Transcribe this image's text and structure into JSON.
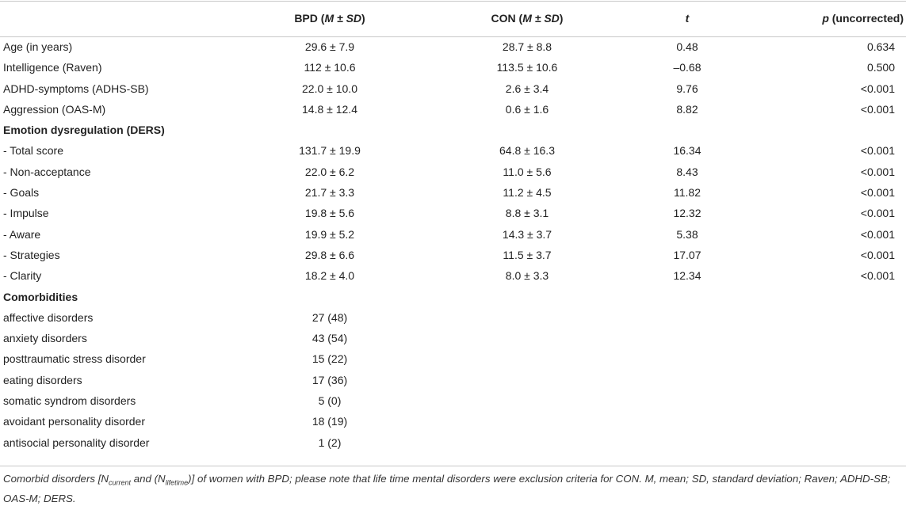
{
  "header": {
    "col0": "",
    "col1_pre": "BPD (",
    "col1_it": "M ± SD",
    "col1_post": ")",
    "col2_pre": "CON (",
    "col2_it": "M ± SD",
    "col2_post": ")",
    "col3": "t",
    "col4_it": "p",
    "col4_post": " (uncorrected)"
  },
  "rows": [
    {
      "label": "Age (in years)",
      "bpd": "29.6 ± 7.9",
      "con": "28.7 ± 8.8",
      "t": "0.48",
      "p": "0.634"
    },
    {
      "label": "Intelligence (Raven)",
      "bpd": "112 ± 10.6",
      "con": "113.5 ± 10.6",
      "t": "–0.68",
      "p": "0.500"
    },
    {
      "label": "ADHD-symptoms (ADHS-SB)",
      "bpd": "22.0 ± 10.0",
      "con": "2.6 ± 3.4",
      "t": "9.76",
      "p": "<0.001"
    },
    {
      "label": "Aggression (OAS-M)",
      "bpd": "14.8 ± 12.4",
      "con": "0.6 ± 1.6",
      "t": "8.82",
      "p": "<0.001"
    },
    {
      "section": true,
      "label": "Emotion dysregulation (DERS)"
    },
    {
      "label": "-  Total score",
      "bpd": "131.7 ± 19.9",
      "con": "64.8 ± 16.3",
      "t": "16.34",
      "p": "<0.001"
    },
    {
      "label": "-  Non-acceptance",
      "bpd": "22.0 ± 6.2",
      "con": "11.0 ± 5.6",
      "t": "8.43",
      "p": "<0.001"
    },
    {
      "label": "-  Goals",
      "bpd": "21.7 ± 3.3",
      "con": "11.2 ± 4.5",
      "t": "11.82",
      "p": "<0.001"
    },
    {
      "label": "-  Impulse",
      "bpd": "19.8 ± 5.6",
      "con": "8.8 ± 3.1",
      "t": "12.32",
      "p": "<0.001"
    },
    {
      "label": "-  Aware",
      "bpd": "19.9 ± 5.2",
      "con": "14.3 ± 3.7",
      "t": "5.38",
      "p": "<0.001"
    },
    {
      "label": "-  Strategies",
      "bpd": "29.8 ± 6.6",
      "con": "11.5 ± 3.7",
      "t": "17.07",
      "p": "<0.001"
    },
    {
      "label": "-  Clarity",
      "bpd": "18.2 ± 4.0",
      "con": "8.0 ± 3.3",
      "t": "12.34",
      "p": "<0.001"
    },
    {
      "section": true,
      "label": "Comorbidities"
    },
    {
      "label": "affective disorders",
      "bpd": "27 (48)",
      "con": "",
      "t": "",
      "p": ""
    },
    {
      "label": "anxiety disorders",
      "bpd": "43 (54)",
      "con": "",
      "t": "",
      "p": ""
    },
    {
      "label": "posttraumatic stress disorder",
      "bpd": "15 (22)",
      "con": "",
      "t": "",
      "p": ""
    },
    {
      "label": "eating disorders",
      "bpd": "17 (36)",
      "con": "",
      "t": "",
      "p": ""
    },
    {
      "label": "somatic syndrom disorders",
      "bpd": "5 (0)",
      "con": "",
      "t": "",
      "p": ""
    },
    {
      "label": "avoidant personality disorder",
      "bpd": "18 (19)",
      "con": "",
      "t": "",
      "p": ""
    },
    {
      "label": "antisocial personality disorder",
      "bpd": "1 (2)",
      "con": "",
      "t": "",
      "p": ""
    }
  ],
  "footnote": {
    "part1": "Comorbid disorders [N",
    "sub1": "current",
    "part2": " and (N",
    "sub2": "lifetime",
    "part3": ")] of women with BPD; please note that life time mental disorders were exclusion criteria for CON. M, mean; SD, standard deviation; Raven; ADHD-SB; OAS-M; DERS."
  }
}
